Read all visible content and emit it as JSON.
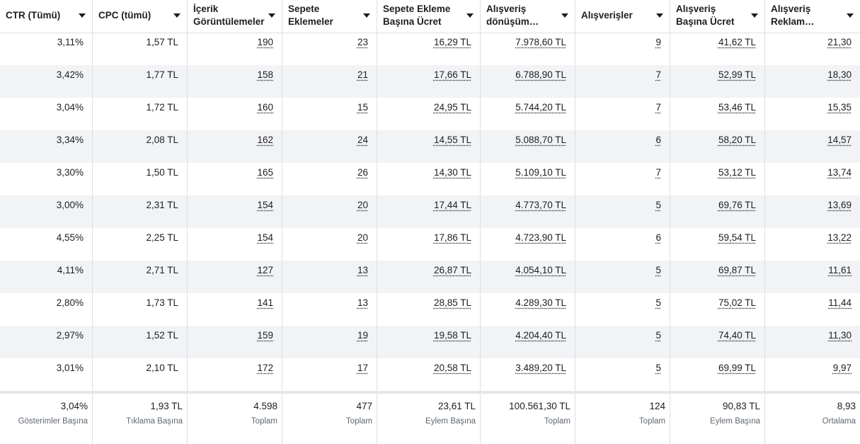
{
  "columns": [
    {
      "key": "ctr",
      "label_lines": [
        "CTR (Tümü)"
      ]
    },
    {
      "key": "cpc",
      "label_lines": [
        "CPC (tümü)"
      ]
    },
    {
      "key": "content_views",
      "label_lines": [
        "İçerik",
        "Görüntülemeler"
      ]
    },
    {
      "key": "add_to_cart",
      "label_lines": [
        "Sepete",
        "Eklemeler"
      ]
    },
    {
      "key": "cost_per_add_to_cart",
      "label_lines": [
        "Sepete Ekleme",
        "Başına Ücret"
      ]
    },
    {
      "key": "purchase_value",
      "label_lines": [
        "Alışveriş",
        "dönüşüm…"
      ]
    },
    {
      "key": "purchases",
      "label_lines": [
        "Alışverişler"
      ]
    },
    {
      "key": "cost_per_purchase",
      "label_lines": [
        "Alışveriş",
        "Başına Ücret"
      ]
    },
    {
      "key": "purchase_roas",
      "label_lines": [
        "Alışveriş",
        "Reklam…"
      ]
    }
  ],
  "rows": [
    [
      "3,11%",
      "1,57 TL",
      "190",
      "23",
      "16,29 TL",
      "7.978,60 TL",
      "9",
      "41,62 TL",
      "21,30"
    ],
    [
      "3,42%",
      "1,77 TL",
      "158",
      "21",
      "17,66 TL",
      "6.788,90 TL",
      "7",
      "52,99 TL",
      "18,30"
    ],
    [
      "3,04%",
      "1,72 TL",
      "160",
      "15",
      "24,95 TL",
      "5.744,20 TL",
      "7",
      "53,46 TL",
      "15,35"
    ],
    [
      "3,34%",
      "2,08 TL",
      "162",
      "24",
      "14,55 TL",
      "5.088,70 TL",
      "6",
      "58,20 TL",
      "14,57"
    ],
    [
      "3,30%",
      "1,50 TL",
      "165",
      "26",
      "14,30 TL",
      "5.109,10 TL",
      "7",
      "53,12 TL",
      "13,74"
    ],
    [
      "3,00%",
      "2,31 TL",
      "154",
      "20",
      "17,44 TL",
      "4.773,70 TL",
      "5",
      "69,76 TL",
      "13,69"
    ],
    [
      "4,55%",
      "2,25 TL",
      "154",
      "20",
      "17,86 TL",
      "4.723,90 TL",
      "6",
      "59,54 TL",
      "13,22"
    ],
    [
      "4,11%",
      "2,71 TL",
      "127",
      "13",
      "26,87 TL",
      "4.054,10 TL",
      "5",
      "69,87 TL",
      "11,61"
    ],
    [
      "2,80%",
      "1,73 TL",
      "141",
      "13",
      "28,85 TL",
      "4.289,30 TL",
      "5",
      "75,02 TL",
      "11,44"
    ],
    [
      "2,97%",
      "1,52 TL",
      "159",
      "19",
      "19,58 TL",
      "4.204,40 TL",
      "5",
      "74,40 TL",
      "11,30"
    ],
    [
      "3,01%",
      "2,10 TL",
      "172",
      "17",
      "20,58 TL",
      "3.489,20 TL",
      "5",
      "69,99 TL",
      "9,97"
    ]
  ],
  "footer": [
    {
      "value": "3,04%",
      "label": "Gösterimler Başına"
    },
    {
      "value": "1,93 TL",
      "label": "Tıklama Başına"
    },
    {
      "value": "4.598",
      "label": "Toplam"
    },
    {
      "value": "477",
      "label": "Toplam"
    },
    {
      "value": "23,61 TL",
      "label": "Eylem Başına"
    },
    {
      "value": "100.561,30 TL",
      "label": "Toplam"
    },
    {
      "value": "124",
      "label": "Toplam"
    },
    {
      "value": "90,83 TL",
      "label": "Eylem Başına"
    },
    {
      "value": "8,93",
      "label": "Ortalama"
    }
  ],
  "colors": {
    "text": "#1c1e21",
    "muted": "#606770",
    "border": "#dddfe2",
    "row_alt": "#f2f3f5"
  },
  "icons": {
    "sort": "chevron-down-icon"
  }
}
